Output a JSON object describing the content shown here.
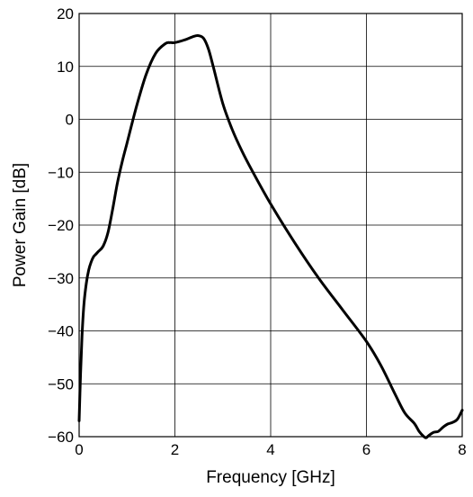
{
  "chart_data": {
    "type": "line",
    "title": "",
    "xlabel": "Frequency [GHz]",
    "ylabel": "Power Gain [dB]",
    "xlim": [
      0,
      8
    ],
    "ylim": [
      -60,
      20
    ],
    "xticks": [
      0,
      2,
      4,
      6,
      8
    ],
    "xtick_labels": [
      "0",
      "2",
      "4",
      "6",
      "8"
    ],
    "yticks": [
      20,
      10,
      0,
      -10,
      -20,
      -30,
      -40,
      -50,
      -60
    ],
    "ytick_labels": [
      "20",
      "10",
      "0",
      "−10",
      "−20",
      "−30",
      "−40",
      "−50",
      "−60"
    ],
    "grid": true,
    "legend": "none",
    "series": [
      {
        "color": "#000000",
        "x": [
          0.0,
          0.03,
          0.06,
          0.1,
          0.15,
          0.2,
          0.25,
          0.3,
          0.35,
          0.4,
          0.5,
          0.6,
          0.7,
          0.8,
          0.9,
          1.0,
          1.2,
          1.4,
          1.6,
          1.8,
          1.9,
          2.0,
          2.2,
          2.4,
          2.5,
          2.6,
          2.7,
          2.8,
          3.0,
          3.2,
          3.4,
          3.6,
          4.0,
          4.5,
          5.0,
          5.5,
          6.0,
          6.3,
          6.6,
          6.8,
          7.0,
          7.1,
          7.2,
          7.25,
          7.3,
          7.4,
          7.5,
          7.6,
          7.7,
          7.8,
          7.9,
          8.0
        ],
        "y": [
          -57,
          -48,
          -41,
          -35,
          -31,
          -28.5,
          -27,
          -26,
          -25.5,
          -25,
          -24,
          -21.5,
          -17,
          -12,
          -8,
          -4.5,
          2.5,
          8.5,
          12.5,
          14.3,
          14.5,
          14.5,
          15.0,
          15.7,
          15.8,
          15.3,
          13.3,
          10.0,
          3.0,
          -2.0,
          -6.0,
          -9.5,
          -16.0,
          -23.3,
          -30.0,
          -36.0,
          -42.0,
          -46.5,
          -52.0,
          -55.5,
          -57.5,
          -59.0,
          -60.0,
          -60.2,
          -59.8,
          -59.2,
          -59.0,
          -58.2,
          -57.6,
          -57.3,
          -56.7,
          -55.0
        ]
      }
    ]
  }
}
